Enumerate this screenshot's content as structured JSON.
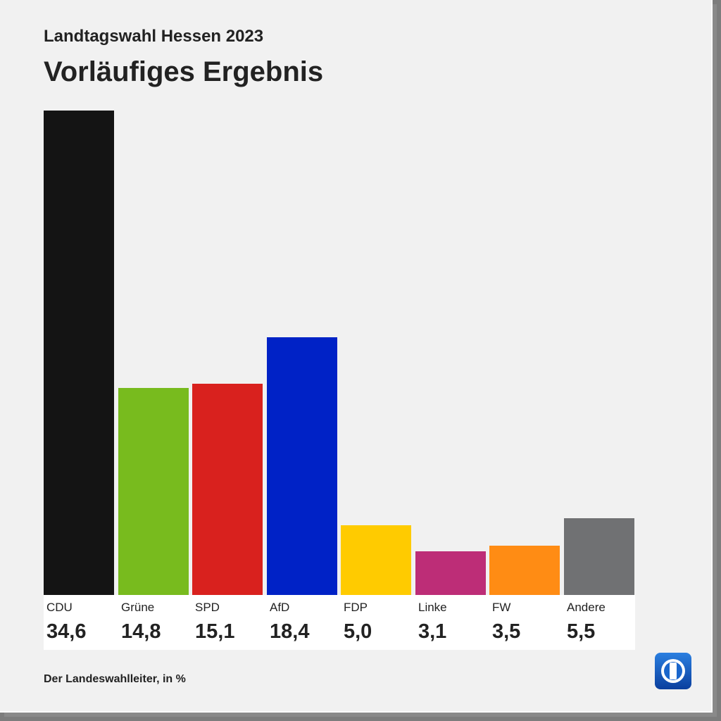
{
  "header": {
    "subtitle": "Landtagswahl Hessen 2023",
    "title": "Vorläufiges Ergebnis"
  },
  "footer": {
    "source": "Der Landeswahlleiter, in %"
  },
  "logo": {
    "icon": "tagesschau-logo-icon"
  },
  "chart_data": {
    "type": "bar",
    "title": "Vorläufiges Ergebnis",
    "subtitle": "Landtagswahl Hessen 2023",
    "ylabel": "in %",
    "ylim": [
      0,
      34.6
    ],
    "grid": false,
    "categories": [
      "CDU",
      "Grüne",
      "SPD",
      "AfD",
      "FDP",
      "Linke",
      "FW",
      "Andere"
    ],
    "values": [
      34.6,
      14.8,
      15.1,
      18.4,
      5.0,
      3.1,
      3.5,
      5.5
    ],
    "value_labels": [
      "34,6",
      "14,8",
      "15,1",
      "18,4",
      "5,0",
      "3,1",
      "3,5",
      "5,5"
    ],
    "colors": [
      "#141414",
      "#78bb1e",
      "#d9211e",
      "#0022c6",
      "#ffcb00",
      "#bd2d77",
      "#ff8c14",
      "#707173"
    ]
  }
}
